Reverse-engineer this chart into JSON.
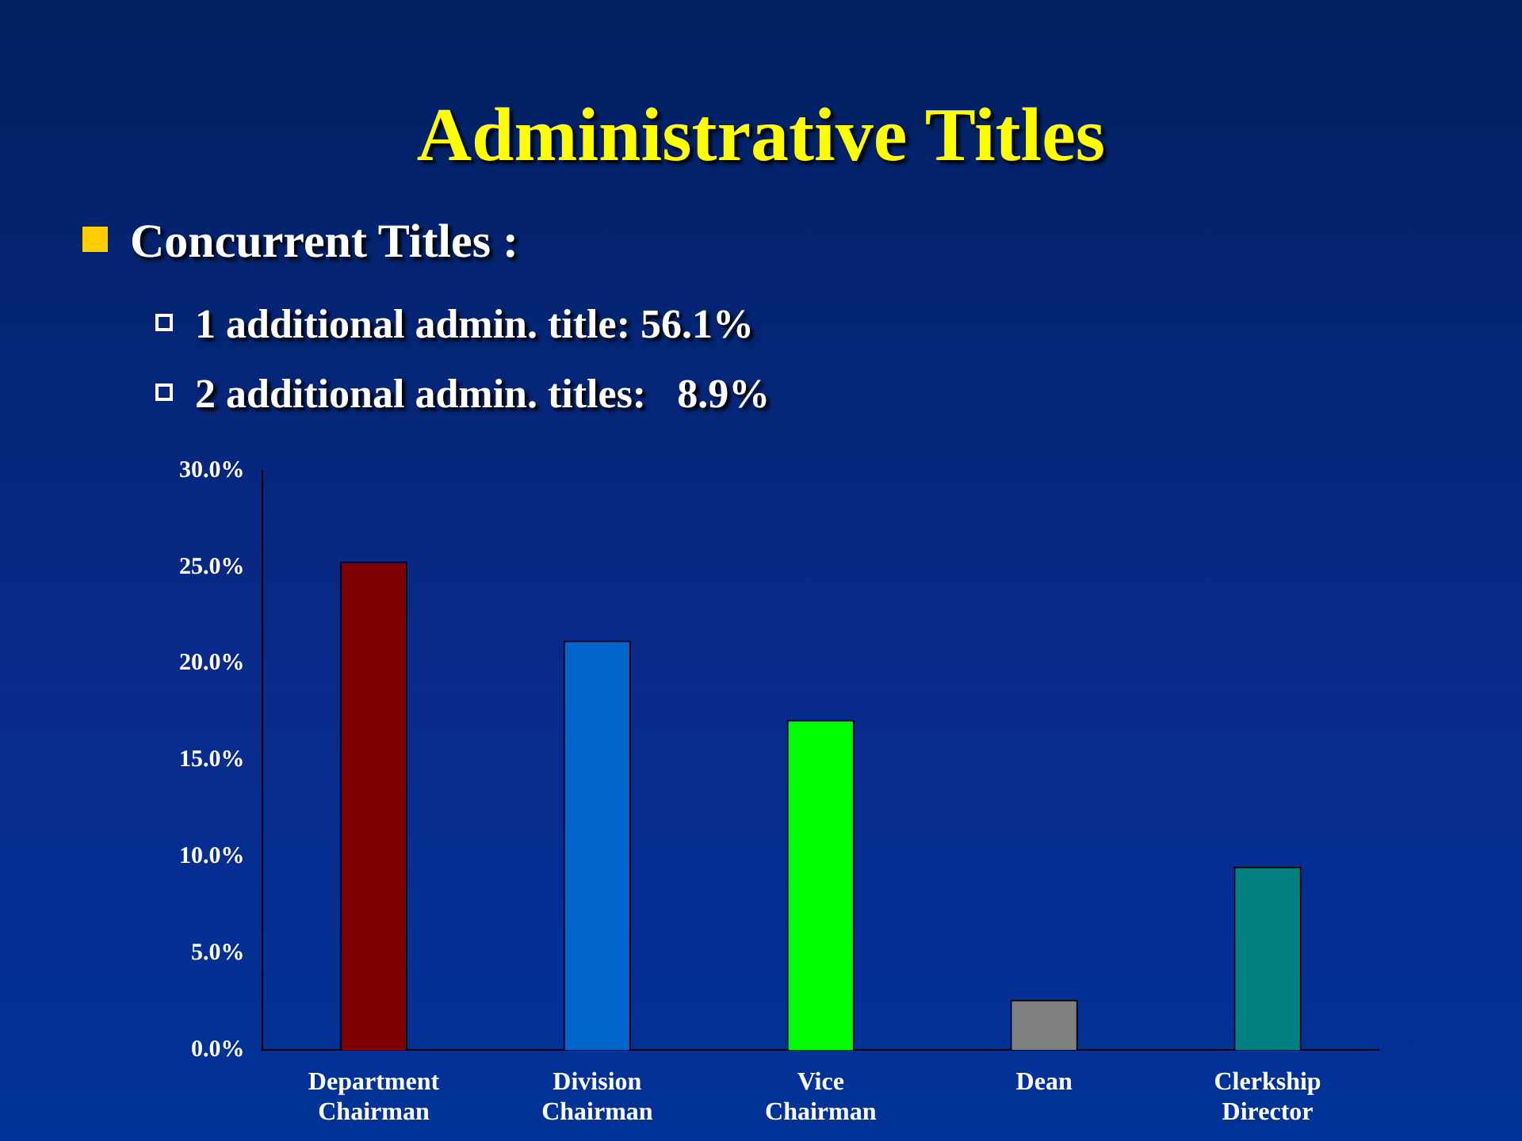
{
  "chart_data": {
    "type": "bar",
    "title": "Administrative Titles",
    "subtitle": "Concurrent Titles :",
    "annotations": [
      "1 additional admin. title: 56.1%",
      "2 additional admin. titles:   8.9%"
    ],
    "categories": [
      "Department Chairman",
      "Division Chairman",
      "Vice Chairman",
      "Dean",
      "Clerkship Director"
    ],
    "values": [
      25.3,
      21.2,
      17.1,
      2.6,
      9.5
    ],
    "colors": [
      "#800000",
      "#0066cc",
      "#00ff00",
      "#808080",
      "#008080"
    ],
    "ylim": [
      0,
      30
    ],
    "yticks": [
      {
        "value": 0,
        "label": "0.0%"
      },
      {
        "value": 5,
        "label": "5.0%"
      },
      {
        "value": 10,
        "label": "10.0%"
      },
      {
        "value": 15,
        "label": "15.0%"
      },
      {
        "value": 20,
        "label": "20.0%"
      },
      {
        "value": 25,
        "label": "25.0%"
      },
      {
        "value": 30,
        "label": "30.0%"
      }
    ],
    "grid": false,
    "legend": false
  }
}
